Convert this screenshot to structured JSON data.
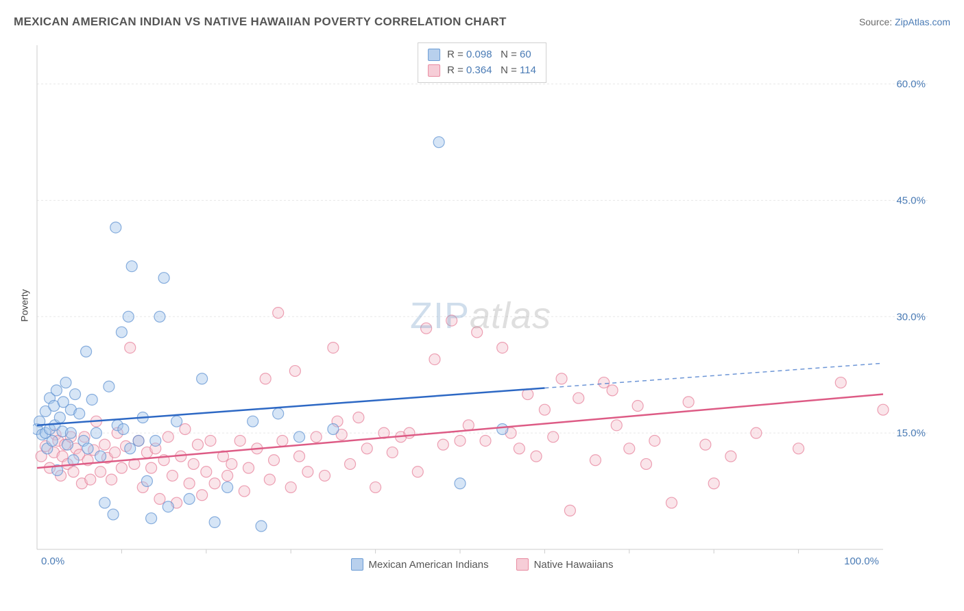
{
  "title": "MEXICAN AMERICAN INDIAN VS NATIVE HAWAIIAN POVERTY CORRELATION CHART",
  "source_label": "Source:",
  "source_value": "ZipAtlas.com",
  "y_axis_label": "Poverty",
  "watermark": {
    "part1": "ZIP",
    "part2": "atlas"
  },
  "chart": {
    "type": "scatter",
    "background_color": "#ffffff",
    "grid_color": "#e8e8e8",
    "axis_line_color": "#cccccc",
    "xlim": [
      0,
      100
    ],
    "ylim": [
      0,
      65
    ],
    "x_ticks": [
      0,
      100
    ],
    "x_tick_labels": [
      "0.0%",
      "100.0%"
    ],
    "x_minor_ticks": [
      10,
      20,
      30,
      40,
      50,
      60,
      70,
      80,
      90
    ],
    "y_gridlines": [
      15,
      30,
      45,
      60
    ],
    "y_tick_labels": [
      "15.0%",
      "30.0%",
      "45.0%",
      "60.0%"
    ],
    "marker_radius": 8,
    "marker_opacity": 0.45,
    "marker_stroke_width": 1.2,
    "trendline_width": 2.5,
    "trendline_dash": "6,5",
    "series": [
      {
        "name": "Mexican American Indians",
        "fill_color": "#a4c5ec",
        "stroke_color": "#5a8fd0",
        "trend_color": "#2d68c4",
        "swatch_fill": "#b8d0ed",
        "swatch_stroke": "#6a9bd4",
        "correlation": {
          "R_label": "R",
          "R_value": "0.098",
          "N_label": "N",
          "N_value": "60"
        },
        "trendline": {
          "x1": 0,
          "y1": 16.0,
          "x2": 60,
          "y2": 20.8,
          "x3": 100,
          "y3": 24.0
        },
        "points": [
          [
            0,
            15.5
          ],
          [
            0.3,
            16.5
          ],
          [
            0.6,
            14.8
          ],
          [
            1.0,
            17.8
          ],
          [
            1.0,
            15.0
          ],
          [
            1.2,
            13.0
          ],
          [
            1.5,
            19.5
          ],
          [
            1.5,
            15.5
          ],
          [
            1.8,
            14.0
          ],
          [
            2.0,
            18.5
          ],
          [
            2.1,
            16.0
          ],
          [
            2.3,
            20.5
          ],
          [
            2.4,
            10.2
          ],
          [
            2.7,
            17.0
          ],
          [
            3.0,
            15.2
          ],
          [
            3.1,
            19.0
          ],
          [
            3.4,
            21.5
          ],
          [
            3.6,
            13.5
          ],
          [
            4.0,
            18.0
          ],
          [
            4.0,
            15.0
          ],
          [
            4.3,
            11.5
          ],
          [
            4.5,
            20.0
          ],
          [
            5.0,
            17.5
          ],
          [
            5.5,
            14.0
          ],
          [
            5.8,
            25.5
          ],
          [
            6.0,
            13.0
          ],
          [
            6.5,
            19.3
          ],
          [
            7.0,
            15.0
          ],
          [
            7.5,
            12.0
          ],
          [
            8.0,
            6.0
          ],
          [
            8.5,
            21.0
          ],
          [
            9.0,
            4.5
          ],
          [
            9.3,
            41.5
          ],
          [
            9.5,
            16.0
          ],
          [
            10.0,
            28.0
          ],
          [
            10.2,
            15.5
          ],
          [
            10.8,
            30.0
          ],
          [
            11.0,
            13.0
          ],
          [
            11.2,
            36.5
          ],
          [
            12.0,
            14.0
          ],
          [
            12.5,
            17.0
          ],
          [
            13.0,
            8.8
          ],
          [
            13.5,
            4.0
          ],
          [
            14.0,
            14.0
          ],
          [
            14.5,
            30.0
          ],
          [
            15.0,
            35.0
          ],
          [
            15.5,
            5.5
          ],
          [
            16.5,
            16.5
          ],
          [
            18.0,
            6.5
          ],
          [
            19.5,
            22.0
          ],
          [
            21.0,
            3.5
          ],
          [
            22.5,
            8.0
          ],
          [
            25.5,
            16.5
          ],
          [
            26.5,
            3.0
          ],
          [
            28.5,
            17.5
          ],
          [
            31.0,
            14.5
          ],
          [
            35.0,
            15.5
          ],
          [
            47.5,
            52.5
          ],
          [
            50.0,
            8.5
          ],
          [
            55.0,
            15.5
          ]
        ]
      },
      {
        "name": "Native Hawaiians",
        "fill_color": "#f5c5d0",
        "stroke_color": "#e57a96",
        "trend_color": "#dd5b85",
        "swatch_fill": "#f6cdd7",
        "swatch_stroke": "#e88aa0",
        "correlation": {
          "R_label": "R",
          "R_value": "0.364",
          "N_label": "N",
          "N_value": "114"
        },
        "trendline": {
          "x1": 0,
          "y1": 10.5,
          "x2": 100,
          "y2": 20.0,
          "x3": 100,
          "y3": 20.0
        },
        "points": [
          [
            0.5,
            12.0
          ],
          [
            1.0,
            13.3
          ],
          [
            1.5,
            10.5
          ],
          [
            2.0,
            12.5
          ],
          [
            2.2,
            14.8
          ],
          [
            2.5,
            14.0
          ],
          [
            2.8,
            9.5
          ],
          [
            3.0,
            12.0
          ],
          [
            3.3,
            13.5
          ],
          [
            3.6,
            11.0
          ],
          [
            4.0,
            14.5
          ],
          [
            4.3,
            10.0
          ],
          [
            4.6,
            13.0
          ],
          [
            5.0,
            12.2
          ],
          [
            5.3,
            8.5
          ],
          [
            5.6,
            14.5
          ],
          [
            6.0,
            11.5
          ],
          [
            6.3,
            9.0
          ],
          [
            6.7,
            12.8
          ],
          [
            7.0,
            16.5
          ],
          [
            7.5,
            10.0
          ],
          [
            8.0,
            13.5
          ],
          [
            8.3,
            11.8
          ],
          [
            8.8,
            9.0
          ],
          [
            9.2,
            12.5
          ],
          [
            9.5,
            15.0
          ],
          [
            10.0,
            10.5
          ],
          [
            10.5,
            13.3
          ],
          [
            11.0,
            26.0
          ],
          [
            11.5,
            11.0
          ],
          [
            12.0,
            14.0
          ],
          [
            12.5,
            8.0
          ],
          [
            13.0,
            12.5
          ],
          [
            13.5,
            10.5
          ],
          [
            14.0,
            13.0
          ],
          [
            14.5,
            6.5
          ],
          [
            15.0,
            11.5
          ],
          [
            15.5,
            14.5
          ],
          [
            16.0,
            9.5
          ],
          [
            16.5,
            6.0
          ],
          [
            17.0,
            12.0
          ],
          [
            17.5,
            15.5
          ],
          [
            18.0,
            8.5
          ],
          [
            18.5,
            11.0
          ],
          [
            19.0,
            13.5
          ],
          [
            19.5,
            7.0
          ],
          [
            20.0,
            10.0
          ],
          [
            20.5,
            14.0
          ],
          [
            21.0,
            8.5
          ],
          [
            22.0,
            12.0
          ],
          [
            22.5,
            9.5
          ],
          [
            23.0,
            11.0
          ],
          [
            24.0,
            14.0
          ],
          [
            24.5,
            7.5
          ],
          [
            25.0,
            10.5
          ],
          [
            26.0,
            13.0
          ],
          [
            27.0,
            22.0
          ],
          [
            27.5,
            9.0
          ],
          [
            28.0,
            11.5
          ],
          [
            28.5,
            30.5
          ],
          [
            29.0,
            14.0
          ],
          [
            30.0,
            8.0
          ],
          [
            30.5,
            23.0
          ],
          [
            31.0,
            12.0
          ],
          [
            32.0,
            10.0
          ],
          [
            33.0,
            14.5
          ],
          [
            34.0,
            9.5
          ],
          [
            35.0,
            26.0
          ],
          [
            35.5,
            16.5
          ],
          [
            36.0,
            14.8
          ],
          [
            37.0,
            11.0
          ],
          [
            38.0,
            17.0
          ],
          [
            39.0,
            13.0
          ],
          [
            40.0,
            8.0
          ],
          [
            41.0,
            15.0
          ],
          [
            42.0,
            12.5
          ],
          [
            43.0,
            14.5
          ],
          [
            44.0,
            15.0
          ],
          [
            45.0,
            10.0
          ],
          [
            46.0,
            28.5
          ],
          [
            47.0,
            24.5
          ],
          [
            48.0,
            13.5
          ],
          [
            49.0,
            29.5
          ],
          [
            50.0,
            14.0
          ],
          [
            51.0,
            16.0
          ],
          [
            52.0,
            28.0
          ],
          [
            53.0,
            14.0
          ],
          [
            55.0,
            26.0
          ],
          [
            56.0,
            15.0
          ],
          [
            57.0,
            13.0
          ],
          [
            58.0,
            20.0
          ],
          [
            59.0,
            12.0
          ],
          [
            60.0,
            18.0
          ],
          [
            61.0,
            14.5
          ],
          [
            62.0,
            22.0
          ],
          [
            63.0,
            5.0
          ],
          [
            64.0,
            19.5
          ],
          [
            66.0,
            11.5
          ],
          [
            67.0,
            21.5
          ],
          [
            68.0,
            20.5
          ],
          [
            68.5,
            16.0
          ],
          [
            70.0,
            13.0
          ],
          [
            71.0,
            18.5
          ],
          [
            72.0,
            11.0
          ],
          [
            73.0,
            14.0
          ],
          [
            75.0,
            6.0
          ],
          [
            77.0,
            19.0
          ],
          [
            79.0,
            13.5
          ],
          [
            80.0,
            8.5
          ],
          [
            82.0,
            12.0
          ],
          [
            85.0,
            15.0
          ],
          [
            90.0,
            13.0
          ],
          [
            95.0,
            21.5
          ],
          [
            100.0,
            18.0
          ]
        ]
      }
    ]
  },
  "bottom_legend": [
    {
      "label": "Mexican American Indians",
      "fill": "#b8d0ed",
      "stroke": "#6a9bd4"
    },
    {
      "label": "Native Hawaiians",
      "fill": "#f6cdd7",
      "stroke": "#e88aa0"
    }
  ]
}
